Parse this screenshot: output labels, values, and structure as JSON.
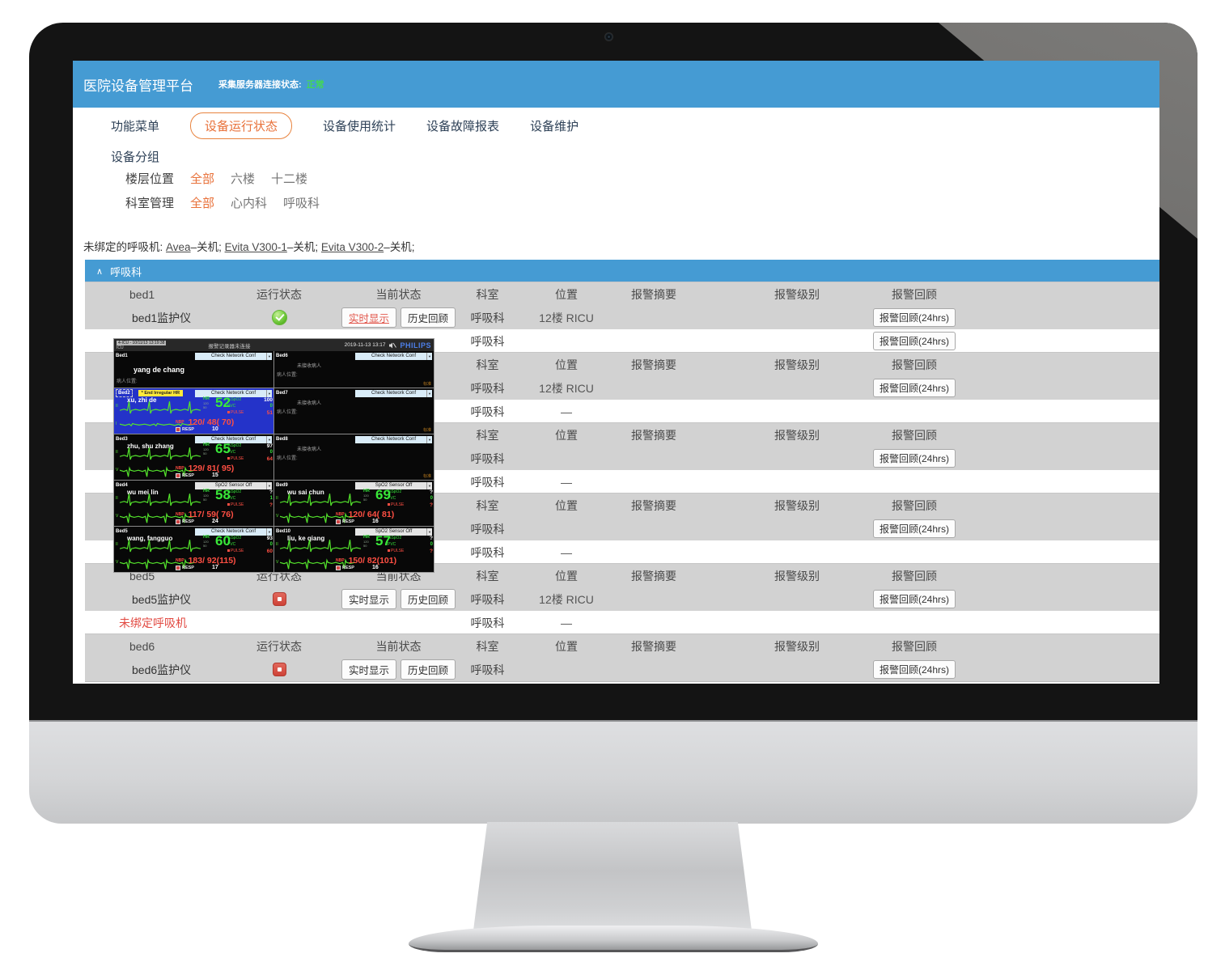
{
  "colors": {
    "accent_blue": "#459BD3",
    "accent_orange": "#E8713A",
    "status_green": "#43D854",
    "alarm_red": "#E24A42"
  },
  "header": {
    "title": "医院设备管理平台",
    "server_status_label": "采集服务器连接状态:",
    "server_status_value": "正常"
  },
  "nav": {
    "menu_label": "功能菜单",
    "tabs": [
      {
        "label": "设备运行状态",
        "active": true
      },
      {
        "label": "设备使用统计",
        "active": false
      },
      {
        "label": "设备故障报表",
        "active": false
      },
      {
        "label": "设备维护",
        "active": false
      }
    ]
  },
  "grouping": {
    "title": "设备分组",
    "filters": [
      {
        "label": "楼层位置",
        "options": [
          {
            "label": "全部",
            "selected": true
          },
          {
            "label": "六楼",
            "selected": false
          },
          {
            "label": "十二楼",
            "selected": false
          }
        ]
      },
      {
        "label": "科室管理",
        "options": [
          {
            "label": "全部",
            "selected": true
          },
          {
            "label": "心内科",
            "selected": false
          },
          {
            "label": "呼吸科",
            "selected": false
          }
        ]
      }
    ]
  },
  "unbound": {
    "prefix": "未绑定的呼吸机:",
    "items": [
      {
        "name": "Avea",
        "status": "–关机;"
      },
      {
        "name": "Evita V300-1",
        "status": "–关机;"
      },
      {
        "name": "Evita V300-2",
        "status": "–关机;"
      }
    ]
  },
  "section": {
    "collapse_icon": "∧",
    "title": "呼吸科"
  },
  "table": {
    "header_cols": {
      "run": "运行状态",
      "current": "当前状态",
      "dept": "科室",
      "loc": "位置",
      "alarm_summary": "报警摘要",
      "alarm_level": "报警级别",
      "alarm_review": "报警回顾"
    },
    "buttons": {
      "realtime": "实时显示",
      "history": "历史回顾",
      "review24": "报警回顾(24hrs)"
    },
    "groups": [
      {
        "bed": "bed1",
        "device": "bed1监护仪",
        "status": "ok",
        "realtime_active": true,
        "dept": "呼吸科",
        "loc": "12楼 RICU",
        "extra": {
          "label": "",
          "red": false,
          "dept": "呼吸科",
          "loc": "",
          "review": true
        }
      },
      {
        "bed": "",
        "device": "",
        "status": "",
        "realtime_active": false,
        "dept": "呼吸科",
        "loc": "12楼 RICU",
        "extra": {
          "label": "",
          "red": false,
          "dept": "呼吸科",
          "loc": "—",
          "review": false
        }
      },
      {
        "bed": "",
        "device": "",
        "status": "",
        "realtime_active": false,
        "dept": "呼吸科",
        "loc": "",
        "extra": {
          "label": "",
          "red": false,
          "dept": "呼吸科",
          "loc": "—",
          "review": false
        }
      },
      {
        "bed": "",
        "device": "",
        "status": "",
        "realtime_active": false,
        "dept": "呼吸科",
        "loc": "",
        "extra": {
          "label": "",
          "red": false,
          "dept": "呼吸科",
          "loc": "—",
          "review": false
        }
      },
      {
        "bed": "bed5",
        "device": "bed5监护仪",
        "status": "stopped",
        "realtime_active": false,
        "dept": "呼吸科",
        "loc": "12楼 RICU",
        "extra": {
          "label": "未绑定呼吸机",
          "red": true,
          "dept": "呼吸科",
          "loc": "—",
          "review": false
        }
      },
      {
        "bed": "bed6",
        "device": "bed6监护仪",
        "status": "stopped",
        "realtime_active": false,
        "dept": "呼吸科",
        "loc": "",
        "extra": null
      }
    ]
  },
  "monitor": {
    "topbar": {
      "alarm_field": "4-ICU - 10/11/13 13:19:38",
      "unit": "ICU",
      "message": "报警记录器未连接",
      "datetime": "2019-11-13 13:17",
      "brand": "PHILIPS"
    },
    "dropdown_check": "Check Network Conf",
    "dropdown_spo2": "SpO2  Sensor Off",
    "no_patient": "未接收病人",
    "location_label": "病人位置:",
    "mode_label": "标准",
    "labels": {
      "hr": "HR",
      "spo2": "%SpO2",
      "pvc": "PVC",
      "pulse": "PULSE",
      "nbp": "NBP",
      "resp": "RESP"
    },
    "beds": [
      {
        "id": "Bed1",
        "type": "name",
        "name": "yang de chang",
        "dropdown": "check"
      },
      {
        "id": "Bed6",
        "type": "empty",
        "dropdown": "check"
      },
      {
        "id": "Bed2",
        "type": "vitals",
        "blue": true,
        "alarm": "* End Irregular HR",
        "name": "xu, zhi de",
        "dropdown": "check",
        "ch1": "II",
        "ch2": "I",
        "hr": "52",
        "hr_hi": "120",
        "hr_lo": "50",
        "spo2": "100",
        "pvc": "0",
        "pulse": "51",
        "nbp": "120/ 48( 70)",
        "resp": "10"
      },
      {
        "id": "Bed7",
        "type": "empty",
        "dropdown": "check"
      },
      {
        "id": "Bed3",
        "type": "vitals",
        "blue": false,
        "name": "zhu, shu zhang",
        "dropdown": "check",
        "ch1": "II",
        "ch2": "V",
        "hr": "65",
        "hr_hi": "120",
        "hr_lo": "50",
        "spo2": "97",
        "pvc": "0",
        "pulse": "64",
        "nbp": "129/ 81( 95)",
        "resp": "15"
      },
      {
        "id": "Bed8",
        "type": "empty",
        "dropdown": "check"
      },
      {
        "id": "Bed4",
        "type": "vitals",
        "blue": false,
        "name": "wu mei lin",
        "dropdown": "spo2",
        "ch1": "II",
        "ch2": "V",
        "hr": "58",
        "hr_hi": "120",
        "hr_lo": "50",
        "spo2": "?",
        "pvc": "1",
        "pulse": "?",
        "nbp": "117/ 59( 76)",
        "resp": "24"
      },
      {
        "id": "Bed9",
        "type": "vitals",
        "blue": false,
        "name": "wu sai chun",
        "dropdown": "spo2",
        "ch1": "II",
        "ch2": "V",
        "hr": "69",
        "hr_hi": "120",
        "hr_lo": "50",
        "spo2": "?",
        "pvc": "0",
        "pulse": "?",
        "nbp": "120/ 64( 81)",
        "resp": "16"
      },
      {
        "id": "Bed5",
        "type": "vitals",
        "blue": false,
        "name": "wang, fangguo",
        "dropdown": "check",
        "ch1": "II",
        "ch2": "V",
        "hr": "60",
        "hr_hi": "120",
        "hr_lo": "50",
        "spo2": "93",
        "pvc": "0",
        "pulse": "60",
        "nbp": "183/ 92(115)",
        "resp": "17"
      },
      {
        "id": "Bed10",
        "type": "vitals",
        "blue": false,
        "name": "liu, ke qiang",
        "dropdown": "spo2",
        "ch1": "II",
        "ch2": "V",
        "hr": "57",
        "hr_hi": "120",
        "hr_lo": "50",
        "spo2": "?",
        "pvc": "0",
        "pulse": "?",
        "nbp": "150/ 82(101)",
        "resp": "16"
      }
    ]
  }
}
